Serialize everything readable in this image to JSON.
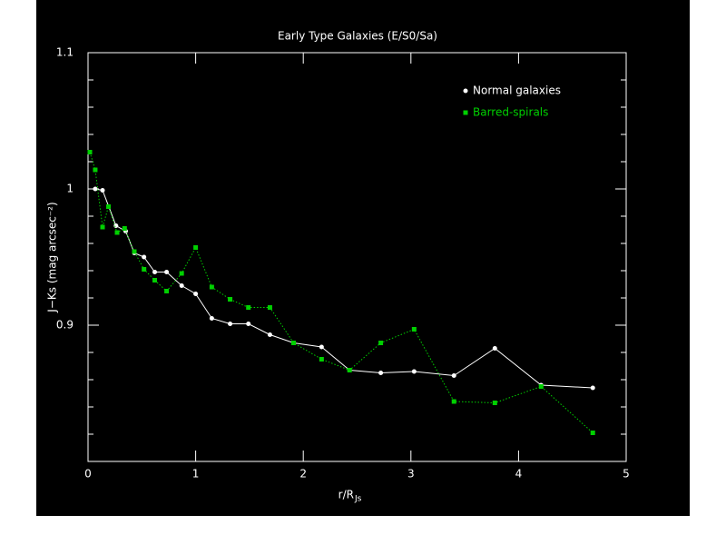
{
  "chart_data": {
    "type": "line",
    "title": "Early Type Galaxies (E/S0/Sa)",
    "xlabel": "r/R",
    "xlabel_sub": "Js",
    "ylabel": "J−Ks (mag arcsec⁻²)",
    "xlim": [
      0,
      5
    ],
    "ylim": [
      0.8,
      1.1
    ],
    "xticks": [
      0,
      1,
      2,
      3,
      4,
      5
    ],
    "yticks": [
      0.9,
      1,
      1.1
    ],
    "yminorticks": [
      0.82,
      0.84,
      0.86,
      0.88,
      0.92,
      0.94,
      0.96,
      0.98,
      1.02,
      1.04,
      1.06,
      1.08
    ],
    "legend": "upper right",
    "series": [
      {
        "name": "Normal galaxies",
        "color": "#ffffff",
        "line_style": "solid",
        "marker": "circle",
        "x": [
          0.067,
          0.135,
          0.26,
          0.35,
          0.43,
          0.52,
          0.62,
          0.73,
          0.87,
          1.0,
          1.15,
          1.32,
          1.49,
          1.69,
          1.91,
          2.17,
          2.43,
          2.72,
          3.03,
          3.4,
          3.78,
          4.21,
          4.69
        ],
        "values": [
          1.0,
          0.999,
          0.973,
          0.969,
          0.953,
          0.95,
          0.939,
          0.939,
          0.929,
          0.923,
          0.905,
          0.901,
          0.901,
          0.893,
          0.887,
          0.884,
          0.867,
          0.865,
          0.866,
          0.863,
          0.883,
          0.856,
          0.854
        ]
      },
      {
        "name": "Barred-spirals",
        "color": "#00d000",
        "line_style": "dotted",
        "marker": "square",
        "x": [
          0.017,
          0.067,
          0.135,
          0.19,
          0.27,
          0.34,
          0.43,
          0.52,
          0.62,
          0.73,
          0.87,
          1.0,
          1.15,
          1.32,
          1.49,
          1.69,
          1.91,
          2.17,
          2.43,
          2.72,
          3.03,
          3.4,
          3.78,
          4.21,
          4.69
        ],
        "values": [
          1.027,
          1.014,
          0.972,
          0.987,
          0.968,
          0.971,
          0.954,
          0.941,
          0.933,
          0.925,
          0.938,
          0.957,
          0.928,
          0.919,
          0.913,
          0.913,
          0.887,
          0.875,
          0.867,
          0.887,
          0.897,
          0.844,
          0.843,
          0.855,
          0.821
        ]
      }
    ]
  }
}
